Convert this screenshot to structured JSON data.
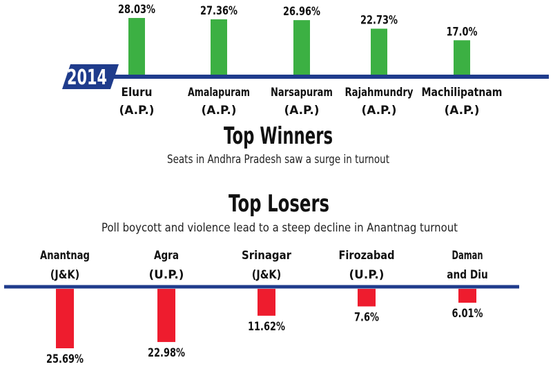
{
  "chart_data": [
    {
      "type": "bar",
      "title": "Top Winners",
      "subtitle": "Seats in Andhra Pradesh saw a surge in turnout",
      "axis_label": "2014",
      "categories": [
        {
          "name": "Eluru",
          "state": "(A.P.)"
        },
        {
          "name": "Amalapuram",
          "state": "(A.P.)"
        },
        {
          "name": "Narsapuram",
          "state": "(A.P.)"
        },
        {
          "name": "Rajahmundry",
          "state": "(A.P.)"
        },
        {
          "name": "Machilipatnam",
          "state": "(A.P.)"
        }
      ],
      "values": [
        28.03,
        27.36,
        26.96,
        22.73,
        17.0
      ],
      "value_labels": [
        "28.03%",
        "27.36%",
        "26.96%",
        "22.73%",
        "17.0%"
      ],
      "direction": "up",
      "bar_color": "#3cb043"
    },
    {
      "type": "bar",
      "title": "Top Losers",
      "subtitle": "Poll boycott and violence lead to a steep decline in Anantnag turnout",
      "categories": [
        {
          "name": "Anantnag",
          "state": "(J&K)"
        },
        {
          "name": "Agra",
          "state": "(U.P.)"
        },
        {
          "name": "Srinagar",
          "state": "(J&K)"
        },
        {
          "name": "Firozabad",
          "state": "(U.P.)"
        },
        {
          "name": "Daman",
          "state": "and Diu"
        }
      ],
      "values": [
        25.69,
        22.98,
        11.62,
        7.6,
        6.01
      ],
      "value_labels": [
        "25.69%",
        "22.98%",
        "11.62%",
        "7.6%",
        "6.01%"
      ],
      "direction": "down",
      "bar_color": "#ee1c2e"
    }
  ],
  "colors": {
    "axis": "#1f3c8c",
    "badge": "#1f3c8c",
    "text": "#111111"
  }
}
